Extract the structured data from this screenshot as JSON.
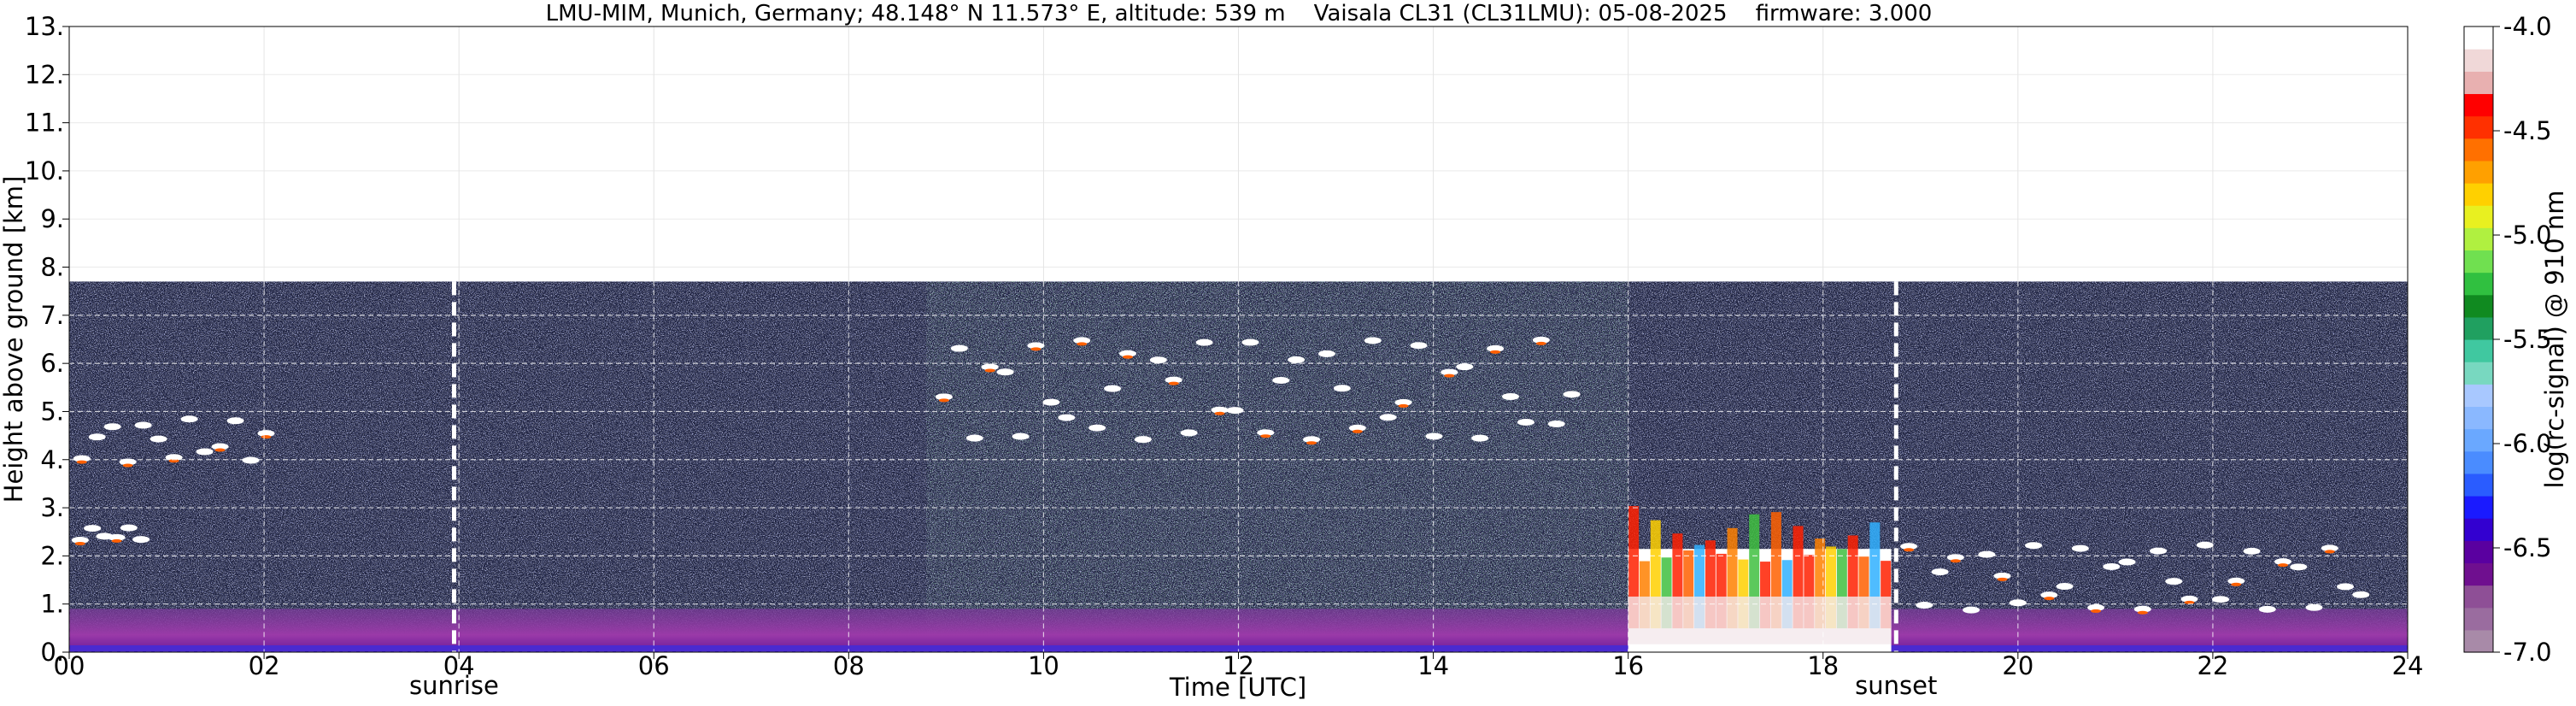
{
  "chart_data": {
    "type": "heatmap",
    "title": "LMU-MIM, Munich, Germany; 48.148° N 11.573° E, altitude: 539 m    Vaisala CL31 (CL31LMU): 05-08-2025    firmware: 3.000",
    "xlabel": "Time [UTC]",
    "ylabel": "Height above ground [km]",
    "xlim": [
      0,
      24
    ],
    "ylim": [
      0,
      13
    ],
    "x_ticks": [
      "00",
      "02",
      "04",
      "06",
      "08",
      "10",
      "12",
      "14",
      "16",
      "18",
      "20",
      "22",
      "24"
    ],
    "y_ticks": [
      "0.",
      "1.",
      "2.",
      "3.",
      "4.",
      "5.",
      "6.",
      "7.",
      "8.",
      "9.",
      "10.",
      "11.",
      "12.",
      "13."
    ],
    "grid": true,
    "measurement_top_km": 7.7,
    "markers": [
      {
        "label": "sunrise",
        "x": 3.95
      },
      {
        "label": "sunset",
        "x": 18.75
      }
    ],
    "colorbar": {
      "label": "log(rc-signal) @ 910 nm",
      "min": -7.0,
      "max": -4.0,
      "ticks": [
        "-4.0",
        "-4.5",
        "-5.0",
        "-5.5",
        "-6.0",
        "-6.5",
        "-7.0"
      ],
      "colors": [
        "#a88aa8",
        "#9a6c9f",
        "#8e4f96",
        "#6f0f8f",
        "#5a00a0",
        "#3300d0",
        "#1a1aff",
        "#2a5cff",
        "#4a8cff",
        "#6aa8ff",
        "#8ab8ff",
        "#a8c8ff",
        "#78d8c0",
        "#40c8a0",
        "#20a060",
        "#108a20",
        "#30c040",
        "#70e050",
        "#b0f040",
        "#e8f020",
        "#ffd000",
        "#ffa000",
        "#ff7000",
        "#ff3000",
        "#ff0000",
        "#e8b0b0",
        "#f0d8d8",
        "#ffffff"
      ]
    },
    "features": [
      {
        "kind": "aerosol_layer",
        "x": [
          0,
          24
        ],
        "y": [
          0,
          0.9
        ]
      },
      {
        "kind": "cloud",
        "x": [
          0.05,
          2.1
        ],
        "y": [
          3.9,
          4.9
        ]
      },
      {
        "kind": "cloud",
        "x": [
          0.05,
          0.8
        ],
        "y": [
          2.3,
          2.6
        ]
      },
      {
        "kind": "cloud",
        "x": [
          8.9,
          15.5
        ],
        "y": [
          4.3,
          6.6
        ]
      },
      {
        "kind": "convective_cloud",
        "x": [
          16.0,
          18.7
        ],
        "y": [
          0,
          3.3
        ]
      },
      {
        "kind": "cloud_fragments",
        "x": [
          18.8,
          23.6
        ],
        "y": [
          0.8,
          2.3
        ]
      }
    ]
  }
}
